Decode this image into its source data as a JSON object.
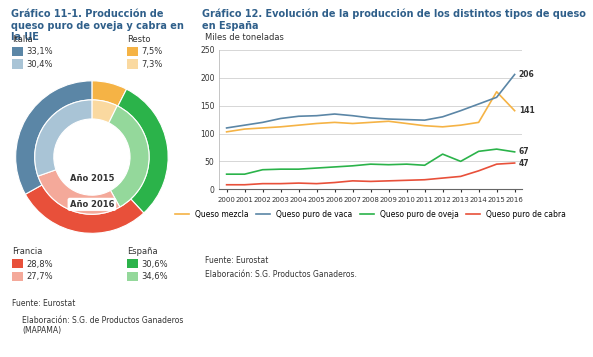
{
  "chart_data": [
    {
      "type": "pie",
      "title": "Gráfico 11-1. Producción de queso puro de oveja y cabra en la UE",
      "categories": [
        "Resto",
        "España",
        "Francia",
        "Italia"
      ],
      "series": [
        {
          "name": "Año 2016",
          "colors": [
            "#f5b345",
            "#2bb34a",
            "#e8503a",
            "#5b86a6"
          ],
          "values": [
            7.5,
            30.6,
            28.8,
            33.1
          ],
          "value_labels": [
            "7,5%",
            "30,6%",
            "28,8%",
            "33,1%"
          ]
        },
        {
          "name": "Año 2015",
          "colors": [
            "#fad9a0",
            "#94d89b",
            "#f4a99a",
            "#a9c4d6"
          ],
          "values": [
            7.3,
            34.6,
            27.7,
            30.4
          ],
          "value_labels": [
            "7,3%",
            "34,6%",
            "27,7%",
            "30,4%"
          ]
        }
      ],
      "source": "Fuente: Eurostat",
      "credit": "Elaboración: S.G. de Productos Ganaderos (MAPAMA)"
    },
    {
      "type": "line",
      "title": "Gráfico 12. Evolución de la producción de los distintos tipos de queso en España",
      "y_label": "Miles de toneladas",
      "x": [
        2000,
        2001,
        2002,
        2003,
        2004,
        2005,
        2006,
        2007,
        2008,
        2009,
        2010,
        2011,
        2012,
        2013,
        2014,
        2015,
        2016
      ],
      "xlim": [
        1999.6,
        2016.4
      ],
      "xticks": [
        2000,
        2001,
        2002,
        2003,
        2004,
        2005,
        2006,
        2007,
        2008,
        2009,
        2010,
        2011,
        2012,
        2013,
        2014,
        2015,
        2016
      ],
      "ylim": [
        0,
        250
      ],
      "yticks": [
        0,
        50,
        100,
        150,
        200,
        250
      ],
      "grid": true,
      "legend": "bottom",
      "series": [
        {
          "name": "Queso mezcla",
          "color": "#f5b345",
          "values": [
            103,
            108,
            110,
            112,
            115,
            118,
            120,
            118,
            120,
            122,
            118,
            114,
            112,
            115,
            120,
            175,
            141
          ],
          "value_labels": [
            null,
            null,
            null,
            null,
            null,
            null,
            null,
            null,
            null,
            null,
            null,
            null,
            null,
            null,
            null,
            null,
            "141"
          ]
        },
        {
          "name": "Queso puro de vaca",
          "color": "#5b86a6",
          "values": [
            110,
            115,
            120,
            127,
            131,
            132,
            135,
            132,
            128,
            126,
            125,
            124,
            130,
            141,
            153,
            165,
            206
          ],
          "value_labels": [
            null,
            null,
            null,
            null,
            null,
            null,
            null,
            null,
            null,
            null,
            null,
            null,
            null,
            null,
            null,
            null,
            "206"
          ]
        },
        {
          "name": "Queso puro de oveja",
          "color": "#2bb34a",
          "values": [
            27,
            27,
            35,
            36,
            36,
            38,
            40,
            42,
            45,
            44,
            45,
            43,
            63,
            50,
            68,
            72,
            67
          ],
          "value_labels": [
            null,
            null,
            null,
            null,
            null,
            null,
            null,
            null,
            null,
            null,
            null,
            null,
            null,
            null,
            null,
            null,
            "67"
          ]
        },
        {
          "name": "Queso puro de cabra",
          "color": "#e8503a",
          "values": [
            8,
            8,
            10,
            10,
            11,
            10,
            12,
            15,
            14,
            15,
            16,
            17,
            20,
            23,
            33,
            45,
            47
          ],
          "value_labels": [
            null,
            null,
            null,
            null,
            null,
            null,
            null,
            null,
            null,
            null,
            null,
            null,
            null,
            null,
            null,
            null,
            "47"
          ]
        }
      ],
      "source": "Fuente: Eurostat",
      "credit": "Elaboración: S.G. Productos Ganaderos."
    }
  ]
}
